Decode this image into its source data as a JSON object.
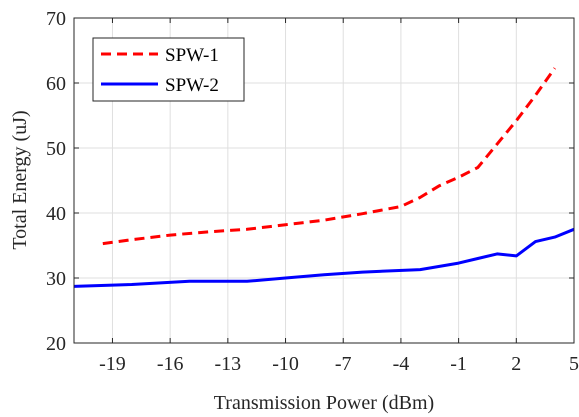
{
  "chart_data": {
    "type": "line",
    "xlabel": "Transmission Power (dBm)",
    "ylabel": "Total Energy (uJ)",
    "xlim": [
      -21,
      5
    ],
    "ylim": [
      20,
      70
    ],
    "xticks": [
      -19,
      -16,
      -13,
      -10,
      -7,
      -4,
      -1,
      2,
      5
    ],
    "yticks": [
      20,
      30,
      40,
      50,
      60,
      70
    ],
    "grid": true,
    "legend_position": "top-left",
    "series": [
      {
        "name": "SPW-1",
        "color": "#ff0000",
        "style": "dashed",
        "x": [
          -19.5,
          -18,
          -16,
          -14,
          -12,
          -10,
          -8,
          -6,
          -4,
          -3,
          -2,
          -1,
          0,
          1,
          2,
          3,
          4
        ],
        "y": [
          35.3,
          35.9,
          36.6,
          37.1,
          37.5,
          38.2,
          38.9,
          39.9,
          41.0,
          42.4,
          44.2,
          45.5,
          47.0,
          50.6,
          54.2,
          58.1,
          62.3
        ]
      },
      {
        "name": "SPW-2",
        "color": "#0000ff",
        "style": "solid",
        "x": [
          -21,
          -18,
          -15,
          -12,
          -10,
          -8,
          -6,
          -3,
          -1,
          0,
          1,
          2,
          3,
          4,
          5
        ],
        "y": [
          28.7,
          29.0,
          29.5,
          29.5,
          30.0,
          30.5,
          30.9,
          31.3,
          32.3,
          33.0,
          33.7,
          33.4,
          35.6,
          36.3,
          37.5
        ]
      }
    ]
  }
}
